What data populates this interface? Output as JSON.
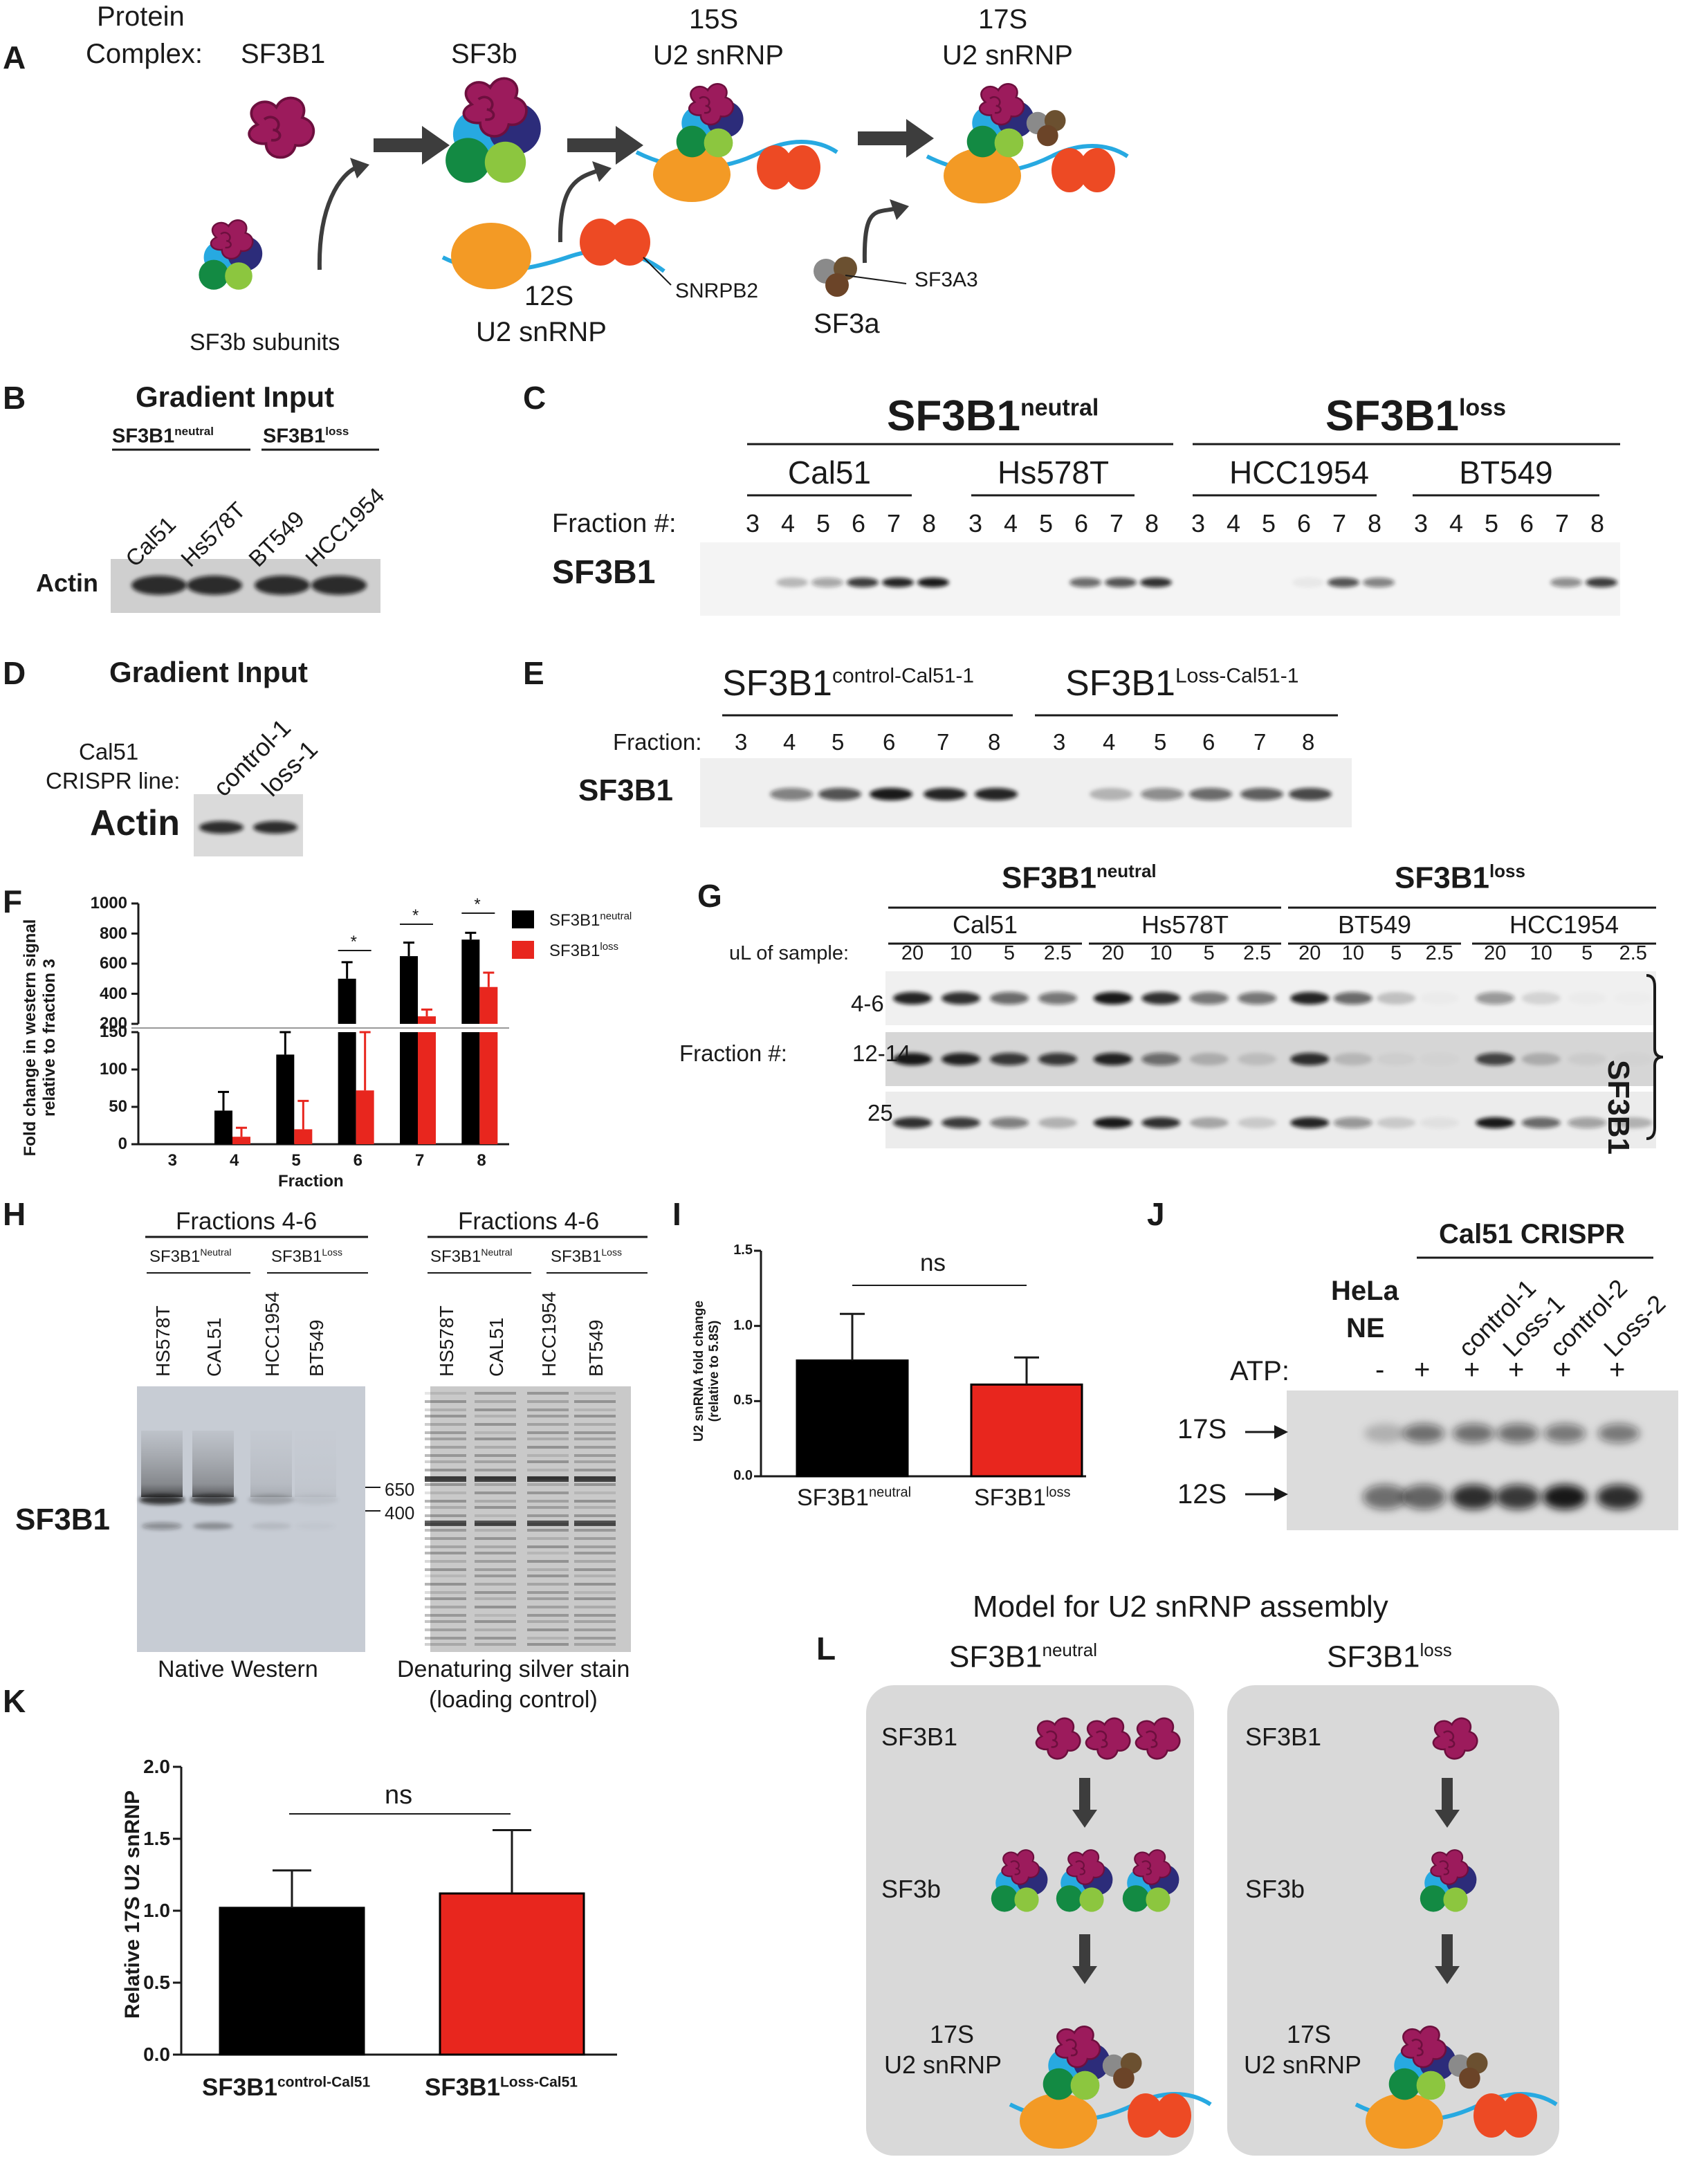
{
  "colors": {
    "black": "#000000",
    "red": "#e8261e",
    "sf3b1_magenta": "#9c1b5c",
    "orange": "#f39a25",
    "sm_red": "#ed4a24",
    "rna_blue": "#27a9e1",
    "panel_grey": "#d9d9d9"
  },
  "panels": {
    "A": {
      "letter": "A",
      "protein_complex": "Protein",
      "complex": "Complex:",
      "sf3b1": "SF3B1",
      "sf3b": "SF3b",
      "s15": "15S",
      "u2_15": "U2 snRNP",
      "s17": "17S",
      "u2_17": "U2 snRNP",
      "subunits": "SF3b subunits",
      "s12": "12S",
      "u2_12": "U2 snRNP",
      "snrpb2": "SNRPB2",
      "sf3a3": "SF3A3",
      "sf3a": "SF3a"
    },
    "B": {
      "letter": "B",
      "title": "Gradient Input",
      "neutral": "SF3B1",
      "neutral_sup": "neutral",
      "loss": "SF3B1",
      "loss_sup": "loss",
      "lanes": [
        "Cal51",
        "Hs578T",
        "BT549",
        "HCC1954"
      ],
      "row": "Actin"
    },
    "C": {
      "letter": "C",
      "neutral": "SF3B1",
      "neutral_sup": "neutral",
      "loss": "SF3B1",
      "loss_sup": "loss",
      "lines": [
        "Cal51",
        "Hs578T",
        "HCC1954",
        "BT549"
      ],
      "fraction_label": "Fraction #:",
      "fractions": [
        "3",
        "4",
        "5",
        "6",
        "7",
        "8",
        "3",
        "4",
        "5",
        "6",
        "7",
        "8",
        "3",
        "4",
        "5",
        "6",
        "7",
        "8",
        "3",
        "4",
        "5",
        "6",
        "7",
        "8"
      ],
      "row": "SF3B1"
    },
    "D": {
      "letter": "D",
      "title": "Gradient Input",
      "cal51": "Cal51",
      "crispr": "CRISPR line:",
      "lanes": [
        "control-1",
        "loss-1"
      ],
      "row": "Actin"
    },
    "E": {
      "letter": "E",
      "control": "SF3B1",
      "control_sup": "control-Cal51-1",
      "loss": "SF3B1",
      "loss_sup": "Loss-Cal51-1",
      "fraction_label": "Fraction:",
      "fractions": [
        "3",
        "4",
        "5",
        "6",
        "7",
        "8",
        "3",
        "4",
        "5",
        "6",
        "7",
        "8"
      ],
      "row": "SF3B1"
    },
    "F": {
      "letter": "F",
      "ylabel_1": "Fold change in western signal",
      "ylabel_2": "relative to fraction 3",
      "xlabel": "Fraction",
      "legend_neutral": "SF3B1",
      "legend_neutral_sup": "neutral",
      "legend_loss": "SF3B1",
      "legend_loss_sup": "loss",
      "upper_ticks": [
        "1000",
        "800",
        "600",
        "400",
        "200"
      ],
      "lower_ticks": [
        "150",
        "100",
        "50",
        "0"
      ],
      "star": "*"
    },
    "G": {
      "letter": "G",
      "neutral": "SF3B1",
      "neutral_sup": "neutral",
      "loss": "SF3B1",
      "loss_sup": "loss",
      "lines": [
        "Cal51",
        "Hs578T",
        "BT549",
        "HCC1954"
      ],
      "ul_label": "uL of sample:",
      "ul_values": [
        "20",
        "10",
        "5",
        "2.5",
        "20",
        "10",
        "5",
        "2.5",
        "20",
        "10",
        "5",
        "2.5",
        "20",
        "10",
        "5",
        "2.5"
      ],
      "fraction_label": "Fraction #:",
      "rows": [
        "4-6",
        "12-14",
        "25"
      ],
      "bracket_label": "SF3B1"
    },
    "H": {
      "letter": "H",
      "fractions_left": "Fractions 4-6",
      "fractions_right": "Fractions 4-6",
      "neutral": "SF3B1",
      "neutral_sup": "Neutral",
      "loss": "SF3B1",
      "loss_sup": "Loss",
      "lanes": [
        "HS578T",
        "CAL51",
        "HCC1954",
        "BT549"
      ],
      "row": "SF3B1",
      "marker_650": "650",
      "marker_400": "400",
      "caption_left": "Native Western",
      "caption_right_1": "Denaturing silver stain",
      "caption_right_2": "(loading control)"
    },
    "I": {
      "letter": "I",
      "ylabel_1": "U2 snRNA fold change",
      "ylabel_2": "(relative to 5.8S)",
      "ns": "ns",
      "cat_1": "SF3B1",
      "cat_1_sup": "neutral",
      "cat_2": "SF3B1",
      "cat_2_sup": "loss",
      "ticks": [
        "0.0",
        "0.5",
        "1.0",
        "1.5"
      ]
    },
    "J": {
      "letter": "J",
      "header": "Cal51 CRISPR",
      "hela_1": "HeLa",
      "hela_2": "NE",
      "lanes": [
        "control-1",
        "Loss-1",
        "control-2",
        "Loss-2"
      ],
      "atp": "ATP:",
      "atp_values": [
        "-",
        "+",
        "+",
        "+",
        "+",
        "+"
      ],
      "band_17s": "17S",
      "band_12s": "12S"
    },
    "K": {
      "letter": "K",
      "ylabel": "Relative 17S U2 snRNP",
      "ns": "ns",
      "cat_1": "SF3B1",
      "cat_1_sup": "control-Cal51",
      "cat_2": "SF3B1",
      "cat_2_sup": "Loss-Cal51",
      "ticks": [
        "0.0",
        "0.5",
        "1.0",
        "1.5",
        "2.0"
      ]
    },
    "L": {
      "letter": "L",
      "title": "Model for U2 snRNP assembly",
      "neutral": "SF3B1",
      "neutral_sup": "neutral",
      "loss": "SF3B1",
      "loss_sup": "loss",
      "row_sf3b1": "SF3B1",
      "row_sf3b": "SF3b",
      "row_17s": "17S",
      "row_u2": "U2 snRNP",
      "row_sf3b1_r": "SF3B1",
      "row_sf3b_r": "SF3b",
      "row_17s_r": "17S",
      "row_u2_r": "U2 snRNP"
    }
  },
  "chart_data": [
    {
      "panel": "F",
      "type": "bar",
      "categories": [
        "3",
        "4",
        "5",
        "6",
        "7",
        "8"
      ],
      "xlabel": "Fraction",
      "ylabel": "Fold change in western signal relative to fraction 3",
      "axis_break": {
        "lower": [
          0,
          150
        ],
        "upper": [
          200,
          1000
        ]
      },
      "series": [
        {
          "name": "SF3B1 neutral",
          "values": [
            0,
            45,
            120,
            500,
            650,
            760
          ],
          "errors": [
            0,
            25,
            45,
            110,
            90,
            45
          ]
        },
        {
          "name": "SF3B1 loss",
          "values": [
            0,
            10,
            20,
            72,
            250,
            445
          ],
          "errors": [
            0,
            12,
            38,
            105,
            45,
            95
          ]
        }
      ],
      "significance": [
        "",
        "",
        "",
        "*",
        "*",
        "*"
      ]
    },
    {
      "panel": "I",
      "type": "bar",
      "categories": [
        "SF3B1 neutral",
        "SF3B1 loss"
      ],
      "values": [
        0.77,
        0.61
      ],
      "errors": [
        0.31,
        0.18
      ],
      "ylim": [
        0,
        1.5
      ],
      "ylabel": "U2 snRNA fold change (relative to 5.8S)",
      "annotation": "ns"
    },
    {
      "panel": "K",
      "type": "bar",
      "categories": [
        "SF3B1 control-Cal51",
        "SF3B1 Loss-Cal51"
      ],
      "values": [
        1.02,
        1.12
      ],
      "errors": [
        0.26,
        0.44
      ],
      "ylim": [
        0,
        2.0
      ],
      "ylabel": "Relative 17S U2 snRNP",
      "annotation": "ns"
    }
  ]
}
